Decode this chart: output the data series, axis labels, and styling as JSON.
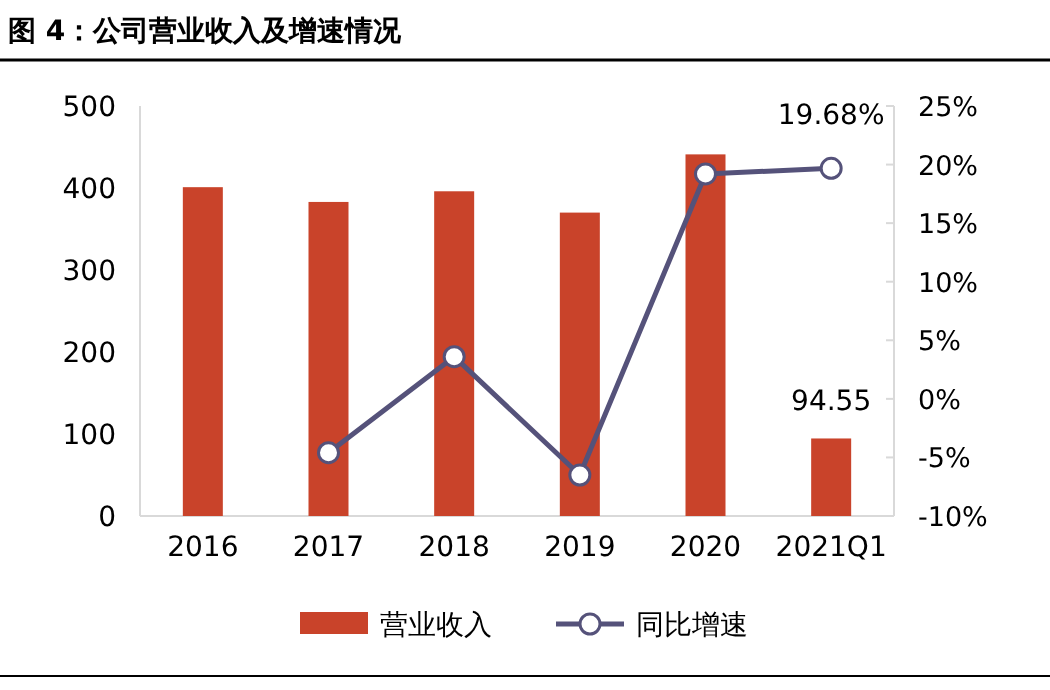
{
  "chart_data": {
    "type": "bar",
    "title": "图 4：公司营业收入及增速情况",
    "categories": [
      "2016",
      "2017",
      "2018",
      "2019",
      "2020",
      "2021Q1"
    ],
    "series": [
      {
        "name": "营业收入",
        "color": "#c9432a",
        "values": [
          401,
          383,
          396,
          370,
          441,
          94.55
        ],
        "value_labels": [
          null,
          null,
          null,
          null,
          null,
          "94.55"
        ]
      },
      {
        "name": "同比增速",
        "type": "line",
        "axis": "y2",
        "color": "#55527a",
        "marker": "circle",
        "values": [
          null,
          -4.6,
          3.6,
          -6.5,
          19.2,
          19.68
        ],
        "value_labels": [
          null,
          null,
          null,
          null,
          null,
          "19.68%"
        ]
      }
    ],
    "ylim": [
      0,
      500
    ],
    "yticks": [
      0,
      100,
      200,
      300,
      400,
      500
    ],
    "y2lim": [
      -10,
      25
    ],
    "y2ticks": [
      {
        "value": -10,
        "label": "-10%"
      },
      {
        "value": -5,
        "label": "-5%"
      },
      {
        "value": 0,
        "label": "0%"
      },
      {
        "value": 5,
        "label": "5%"
      },
      {
        "value": 10,
        "label": "10%"
      },
      {
        "value": 15,
        "label": "15%"
      },
      {
        "value": 20,
        "label": "20%"
      },
      {
        "value": 25,
        "label": "25%"
      }
    ],
    "grid": false,
    "legend": "bottom"
  }
}
